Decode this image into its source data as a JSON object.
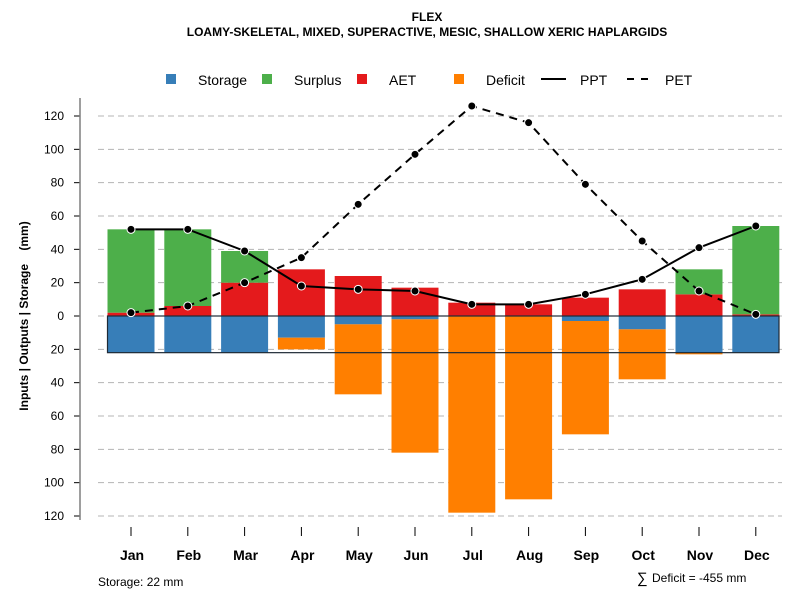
{
  "chart_data": {
    "type": "bar",
    "title": "FLEX",
    "subtitle": "LOAMY-SKELETAL, MIXED, SUPERACTIVE, MESIC, SHALLOW XERIC HAPLARGIDS",
    "xlabel": "",
    "ylabel": "Inputs | Outputs | Storage    (mm)",
    "categories": [
      "Jan",
      "Feb",
      "Mar",
      "Apr",
      "May",
      "Jun",
      "Jul",
      "Aug",
      "Sep",
      "Oct",
      "Nov",
      "Dec"
    ],
    "yticks": [
      120,
      100,
      80,
      60,
      40,
      20,
      0,
      20,
      40,
      60,
      80,
      100,
      120
    ],
    "ylim": [
      -120,
      130
    ],
    "grid": true,
    "legend_position": "top",
    "legend": [
      {
        "label": "Storage",
        "kind": "box",
        "color": "#377EB8"
      },
      {
        "label": "Surplus",
        "kind": "box",
        "color": "#4DAF4A"
      },
      {
        "label": "AET",
        "kind": "box",
        "color": "#E41A1C"
      },
      {
        "label": "Deficit",
        "kind": "box",
        "color": "#FF7F00"
      },
      {
        "label": "PPT",
        "kind": "line",
        "dash": "solid",
        "color": "#000000"
      },
      {
        "label": "PET",
        "kind": "line",
        "dash": "dashed",
        "color": "#000000"
      }
    ],
    "stacked_series_above_zero": [
      {
        "name": "AET",
        "color": "#E41A1C",
        "values": [
          2,
          6,
          20,
          28,
          24,
          17,
          8,
          7,
          11,
          16,
          13,
          1
        ]
      },
      {
        "name": "Surplus",
        "color": "#4DAF4A",
        "values": [
          50,
          46,
          19,
          0,
          0,
          0,
          0,
          0,
          0,
          0,
          15,
          53
        ]
      }
    ],
    "stacked_series_below_zero": [
      {
        "name": "Storage",
        "color": "#377EB8",
        "values": [
          22,
          22,
          22,
          13,
          5,
          2,
          0,
          0,
          3,
          8,
          22,
          22
        ]
      },
      {
        "name": "Deficit",
        "color": "#FF7F00",
        "values": [
          0,
          0,
          0,
          7,
          42,
          80,
          118,
          110,
          68,
          30,
          1,
          0
        ]
      }
    ],
    "line_series": [
      {
        "name": "PPT",
        "dash": "solid",
        "values": [
          52,
          52,
          39,
          18,
          16,
          15,
          7,
          7,
          13,
          22,
          41,
          54
        ]
      },
      {
        "name": "PET",
        "dash": "dashed",
        "values": [
          2,
          6,
          20,
          35,
          67,
          97,
          126,
          116,
          79,
          45,
          15,
          1
        ]
      }
    ],
    "storage_capacity": 22,
    "annotations": {
      "storage": "Storage: 22 mm",
      "deficit_sum_symbol": "∑",
      "deficit": "Deficit = -455 mm"
    }
  }
}
